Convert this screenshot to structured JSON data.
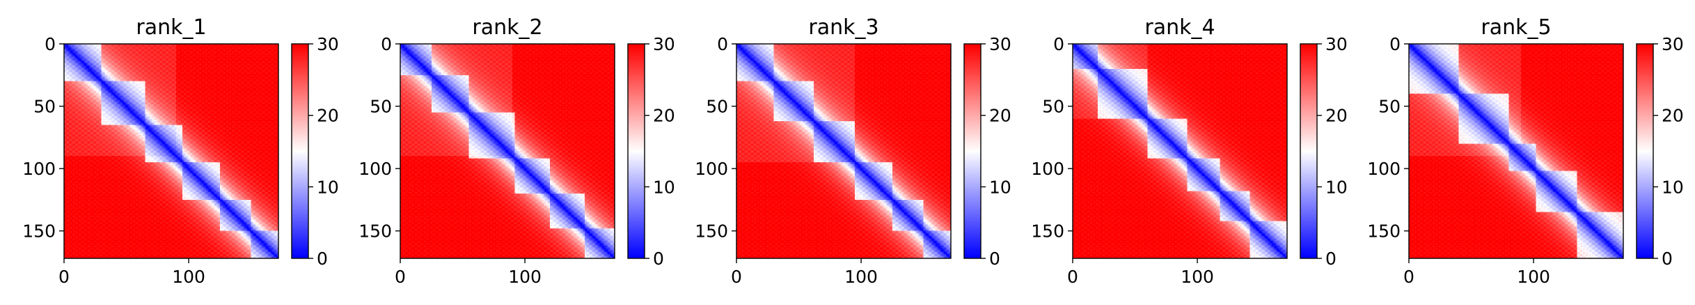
{
  "chart_data": [
    {
      "type": "heatmap",
      "title": "rank_1",
      "matrix_size": 172,
      "x_ticks": [
        "0",
        "100"
      ],
      "y_ticks": [
        "0",
        "50",
        "100",
        "150"
      ],
      "colorbar": {
        "min": 0,
        "max": 30,
        "ticks": [
          "0",
          "10",
          "20",
          "30"
        ],
        "colormap": "bwr"
      },
      "domains": [
        [
          0,
          30
        ],
        [
          30,
          65
        ],
        [
          65,
          95
        ],
        [
          95,
          125
        ],
        [
          125,
          150
        ],
        [
          150,
          172
        ]
      ],
      "secondary_block": [
        0,
        90
      ]
    },
    {
      "type": "heatmap",
      "title": "rank_2",
      "matrix_size": 172,
      "x_ticks": [
        "0",
        "100"
      ],
      "y_ticks": [
        "0",
        "50",
        "100",
        "150"
      ],
      "colorbar": {
        "min": 0,
        "max": 30,
        "ticks": [
          "0",
          "10",
          "20",
          "30"
        ],
        "colormap": "bwr"
      },
      "domains": [
        [
          0,
          25
        ],
        [
          25,
          55
        ],
        [
          55,
          92
        ],
        [
          92,
          120
        ],
        [
          120,
          148
        ],
        [
          148,
          172
        ]
      ],
      "secondary_block": [
        0,
        90
      ]
    },
    {
      "type": "heatmap",
      "title": "rank_3",
      "matrix_size": 172,
      "x_ticks": [
        "0",
        "100"
      ],
      "y_ticks": [
        "0",
        "50",
        "100",
        "150"
      ],
      "colorbar": {
        "min": 0,
        "max": 30,
        "ticks": [
          "0",
          "10",
          "20",
          "30"
        ],
        "colormap": "bwr"
      },
      "domains": [
        [
          0,
          30
        ],
        [
          30,
          62
        ],
        [
          62,
          95
        ],
        [
          95,
          125
        ],
        [
          125,
          150
        ],
        [
          150,
          172
        ]
      ],
      "secondary_block": [
        0,
        95
      ]
    },
    {
      "type": "heatmap",
      "title": "rank_4",
      "matrix_size": 172,
      "x_ticks": [
        "0",
        "100"
      ],
      "y_ticks": [
        "0",
        "50",
        "100",
        "150"
      ],
      "colorbar": {
        "min": 0,
        "max": 30,
        "ticks": [
          "0",
          "10",
          "20",
          "30"
        ],
        "colormap": "bwr"
      },
      "domains": [
        [
          0,
          20
        ],
        [
          20,
          60
        ],
        [
          60,
          92
        ],
        [
          92,
          118
        ],
        [
          118,
          142
        ],
        [
          142,
          172
        ]
      ],
      "secondary_block": [
        0,
        60
      ]
    },
    {
      "type": "heatmap",
      "title": "rank_5",
      "matrix_size": 172,
      "x_ticks": [
        "0",
        "100"
      ],
      "y_ticks": [
        "0",
        "50",
        "100",
        "150"
      ],
      "colorbar": {
        "min": 0,
        "max": 30,
        "ticks": [
          "0",
          "10",
          "20",
          "30"
        ],
        "colormap": "bwr"
      },
      "domains": [
        [
          0,
          40
        ],
        [
          40,
          80
        ],
        [
          80,
          102
        ],
        [
          102,
          135
        ],
        [
          135,
          172
        ]
      ],
      "secondary_block": [
        0,
        90
      ]
    }
  ]
}
